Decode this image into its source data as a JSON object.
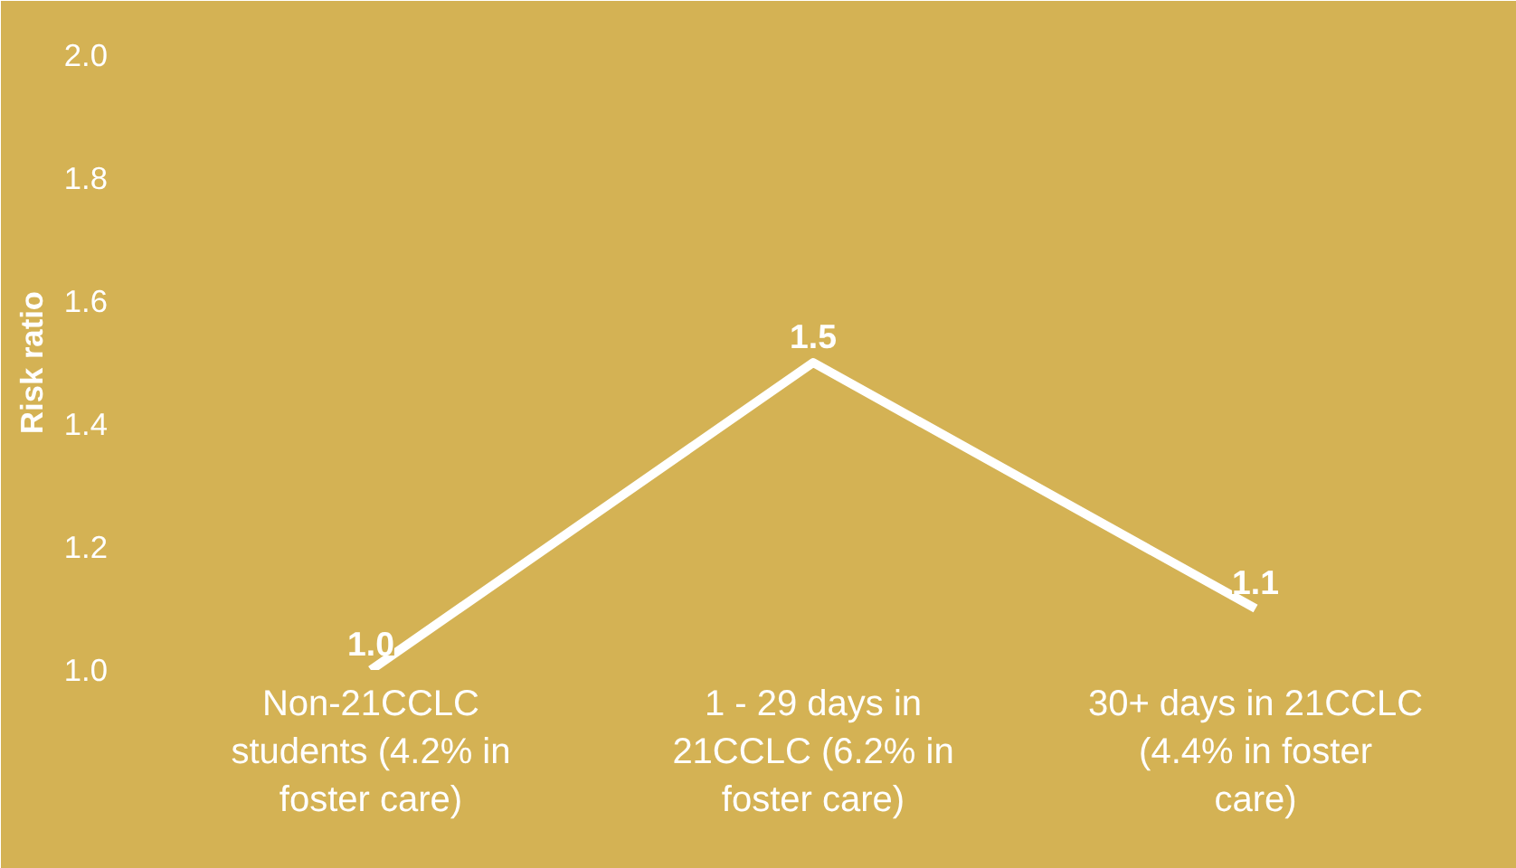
{
  "chart_data": {
    "type": "line",
    "ylabel": "Risk ratio",
    "categories": [
      "Non-21CCLC students (4.2% in foster care)",
      "1 - 29 days in 21CCLC (6.2% in foster care)",
      "30+ days in 21CCLC (4.4% in foster care)"
    ],
    "series": [
      {
        "color": "#ffffff",
        "values": [
          1.0,
          1.5,
          1.1
        ],
        "value_labels": [
          "1.0",
          "1.5",
          "1.1"
        ]
      }
    ],
    "ylim": [
      1.0,
      2.0
    ],
    "yticks": [
      {
        "value": 1.0,
        "label": "1.0"
      },
      {
        "value": 1.2,
        "label": "1.2"
      },
      {
        "value": 1.4,
        "label": "1.4"
      },
      {
        "value": 1.6,
        "label": "1.6"
      },
      {
        "value": 1.8,
        "label": "1.8"
      },
      {
        "value": 2.0,
        "label": "2.0"
      }
    ],
    "grid": false,
    "marker": "none",
    "line_style": "solid"
  }
}
